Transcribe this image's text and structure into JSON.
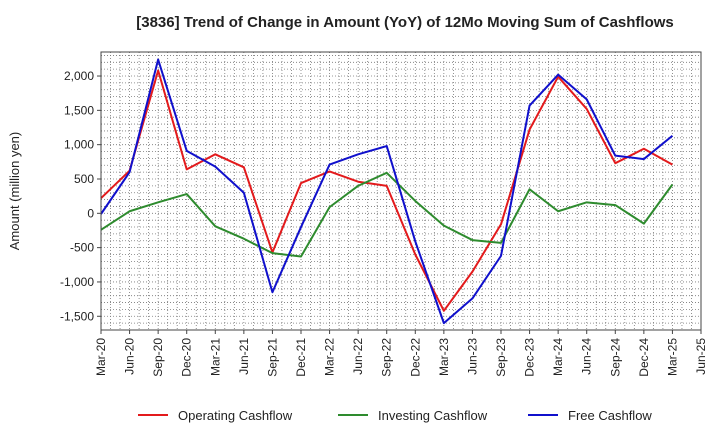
{
  "chart_data": {
    "type": "line",
    "title": "[3836]  Trend of Change in Amount (YoY) of 12Mo Moving Sum of Cashflows",
    "xlabel": "",
    "ylabel": "Amount (million yen)",
    "ylim": [
      -1700,
      2350
    ],
    "yticks": [
      2000,
      1500,
      1000,
      500,
      0,
      -500,
      -1000,
      -1500
    ],
    "ytick_labels": [
      "2,000",
      "1,500",
      "1,000",
      "500",
      "0",
      "-500",
      "-1,000",
      "-1,500"
    ],
    "categories": [
      "Mar-20",
      "Jun-20",
      "Sep-20",
      "Dec-20",
      "Mar-21",
      "Jun-21",
      "Sep-21",
      "Dec-21",
      "Mar-22",
      "Jun-22",
      "Sep-22",
      "Dec-22",
      "Mar-23",
      "Jun-23",
      "Sep-23",
      "Dec-23",
      "Mar-24",
      "Jun-24",
      "Sep-24",
      "Dec-24",
      "Mar-25",
      "Jun-25"
    ],
    "grid": true,
    "legend_position": "bottom",
    "series": [
      {
        "name": "Operating Cashflow",
        "color": "#e31a1c",
        "values": [
          220,
          620,
          2080,
          640,
          860,
          670,
          -570,
          440,
          610,
          460,
          400,
          -600,
          -1420,
          -850,
          -160,
          1220,
          1990,
          1520,
          730,
          940,
          710,
          null
        ]
      },
      {
        "name": "Investing Cashflow",
        "color": "#2e8b2e",
        "values": [
          -240,
          30,
          160,
          280,
          -190,
          -370,
          -580,
          -630,
          90,
          400,
          590,
          180,
          -180,
          -390,
          -430,
          350,
          30,
          160,
          120,
          -150,
          420,
          null
        ]
      },
      {
        "name": "Free Cashflow",
        "color": "#1010cc",
        "values": [
          -10,
          600,
          2240,
          910,
          680,
          300,
          -1150,
          -200,
          710,
          860,
          980,
          -410,
          -1600,
          -1240,
          -620,
          1570,
          2020,
          1660,
          840,
          790,
          1130,
          null
        ]
      }
    ]
  }
}
